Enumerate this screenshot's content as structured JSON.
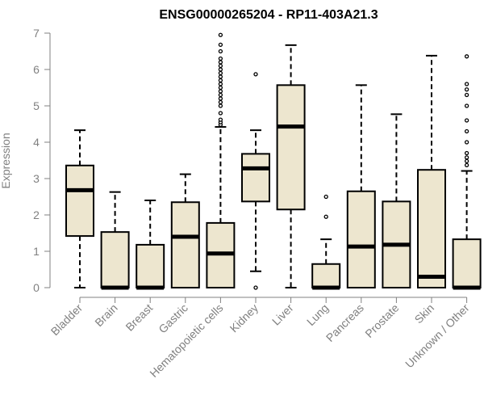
{
  "chart_data": {
    "type": "boxplot",
    "title": "ENSG00000265204 - RP11-403A21.3",
    "xlabel": "",
    "ylabel": "Expression",
    "ylim": [
      0,
      7
    ],
    "yticks": [
      0,
      1,
      2,
      3,
      4,
      5,
      6,
      7
    ],
    "colors": {
      "box_fill": "#ede6cf",
      "box_stroke": "#000000",
      "axis": "#808080"
    },
    "categories": [
      "Bladder",
      "Brain",
      "Breast",
      "Gastric",
      "Hematopoietic cells",
      "Kidney",
      "Liver",
      "Lung",
      "Pancreas",
      "Prostate",
      "Skin",
      "Unknown / Other"
    ],
    "boxes": [
      {
        "name": "Bladder",
        "min": 0,
        "q1": 1.42,
        "median": 2.68,
        "q3": 3.36,
        "max": 4.33,
        "outliers": []
      },
      {
        "name": "Brain",
        "min": 0,
        "q1": 0,
        "median": 0,
        "q3": 1.53,
        "max": 2.63,
        "outliers": []
      },
      {
        "name": "Breast",
        "min": 0,
        "q1": 0,
        "median": 0,
        "q3": 1.18,
        "max": 2.4,
        "outliers": []
      },
      {
        "name": "Gastric",
        "min": 0,
        "q1": 0,
        "median": 1.4,
        "q3": 2.35,
        "max": 3.12,
        "outliers": []
      },
      {
        "name": "Hematopoietic cells",
        "min": 0,
        "q1": 0,
        "median": 0.94,
        "q3": 1.78,
        "max": 4.42,
        "outliers": [
          4.48,
          4.55,
          4.62,
          4.8,
          5.0,
          5.1,
          5.2,
          5.3,
          5.4,
          5.5,
          5.6,
          5.7,
          5.8,
          5.9,
          6.0,
          6.1,
          6.2,
          6.3,
          6.5,
          6.68,
          6.95
        ]
      },
      {
        "name": "Kidney",
        "min": 0.45,
        "q1": 2.37,
        "median": 3.28,
        "q3": 3.68,
        "max": 4.33,
        "outliers": [
          0,
          5.87
        ]
      },
      {
        "name": "Liver",
        "min": 0,
        "q1": 2.15,
        "median": 4.43,
        "q3": 5.57,
        "max": 6.67,
        "outliers": []
      },
      {
        "name": "Lung",
        "min": 0,
        "q1": 0,
        "median": 0,
        "q3": 0.65,
        "max": 1.33,
        "outliers": [
          1.95,
          2.5
        ]
      },
      {
        "name": "Pancreas",
        "min": 0,
        "q1": 0,
        "median": 1.13,
        "q3": 2.65,
        "max": 5.57,
        "outliers": []
      },
      {
        "name": "Prostate",
        "min": 0,
        "q1": 0,
        "median": 1.18,
        "q3": 2.37,
        "max": 4.77,
        "outliers": []
      },
      {
        "name": "Skin",
        "min": 0,
        "q1": 0,
        "median": 0.3,
        "q3": 3.24,
        "max": 6.38,
        "outliers": []
      },
      {
        "name": "Unknown / Other",
        "min": 0,
        "q1": 0,
        "median": 0,
        "q3": 1.33,
        "max": 3.21,
        "outliers": [
          3.37,
          3.48,
          3.58,
          3.7,
          4.0,
          4.3,
          4.6,
          5.0,
          5.3,
          5.45,
          5.6,
          6.36
        ]
      }
    ]
  }
}
